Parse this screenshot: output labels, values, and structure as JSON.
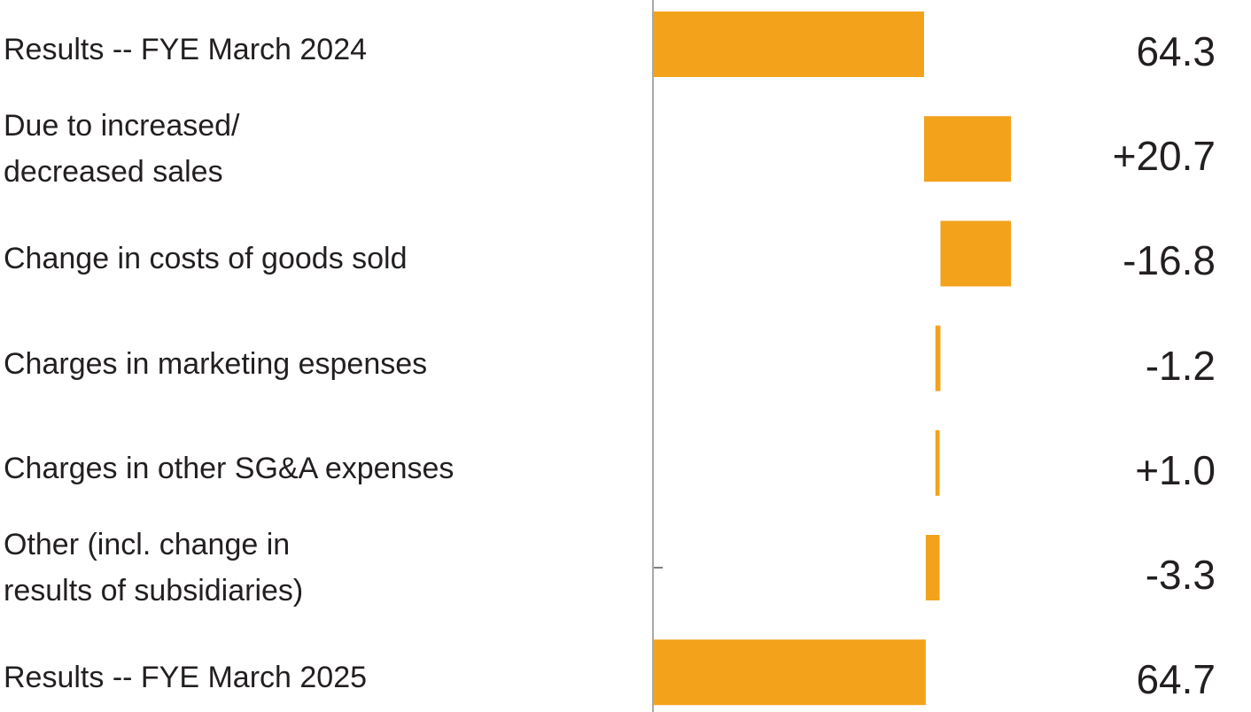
{
  "chart_data": {
    "type": "bar",
    "subtype": "waterfall-horizontal",
    "orientation": "horizontal",
    "categories": [
      "Results -- FYE March 2024",
      "Due to increased/\ndecreased sales",
      "Change in costs of goods sold",
      "Charges in marketing espenses",
      "Charges in other SG&A expenses",
      "Other (incl. change in\nresults of subsidiaries)",
      "Results -- FYE March 2025"
    ],
    "values": [
      64.3,
      20.7,
      -16.8,
      -1.2,
      1.0,
      -3.3,
      64.7
    ],
    "value_labels": [
      "64.3",
      "+20.7",
      "-16.8",
      "-1.2",
      "+1.0",
      "-3.3",
      "64.7"
    ],
    "kinds": [
      "total",
      "delta",
      "delta",
      "delta",
      "delta",
      "delta",
      "total"
    ],
    "xlim": [
      0,
      86
    ],
    "title": "",
    "xlabel": "",
    "ylabel": "",
    "grid": false,
    "legend": "none",
    "color": "#F2A31B"
  }
}
